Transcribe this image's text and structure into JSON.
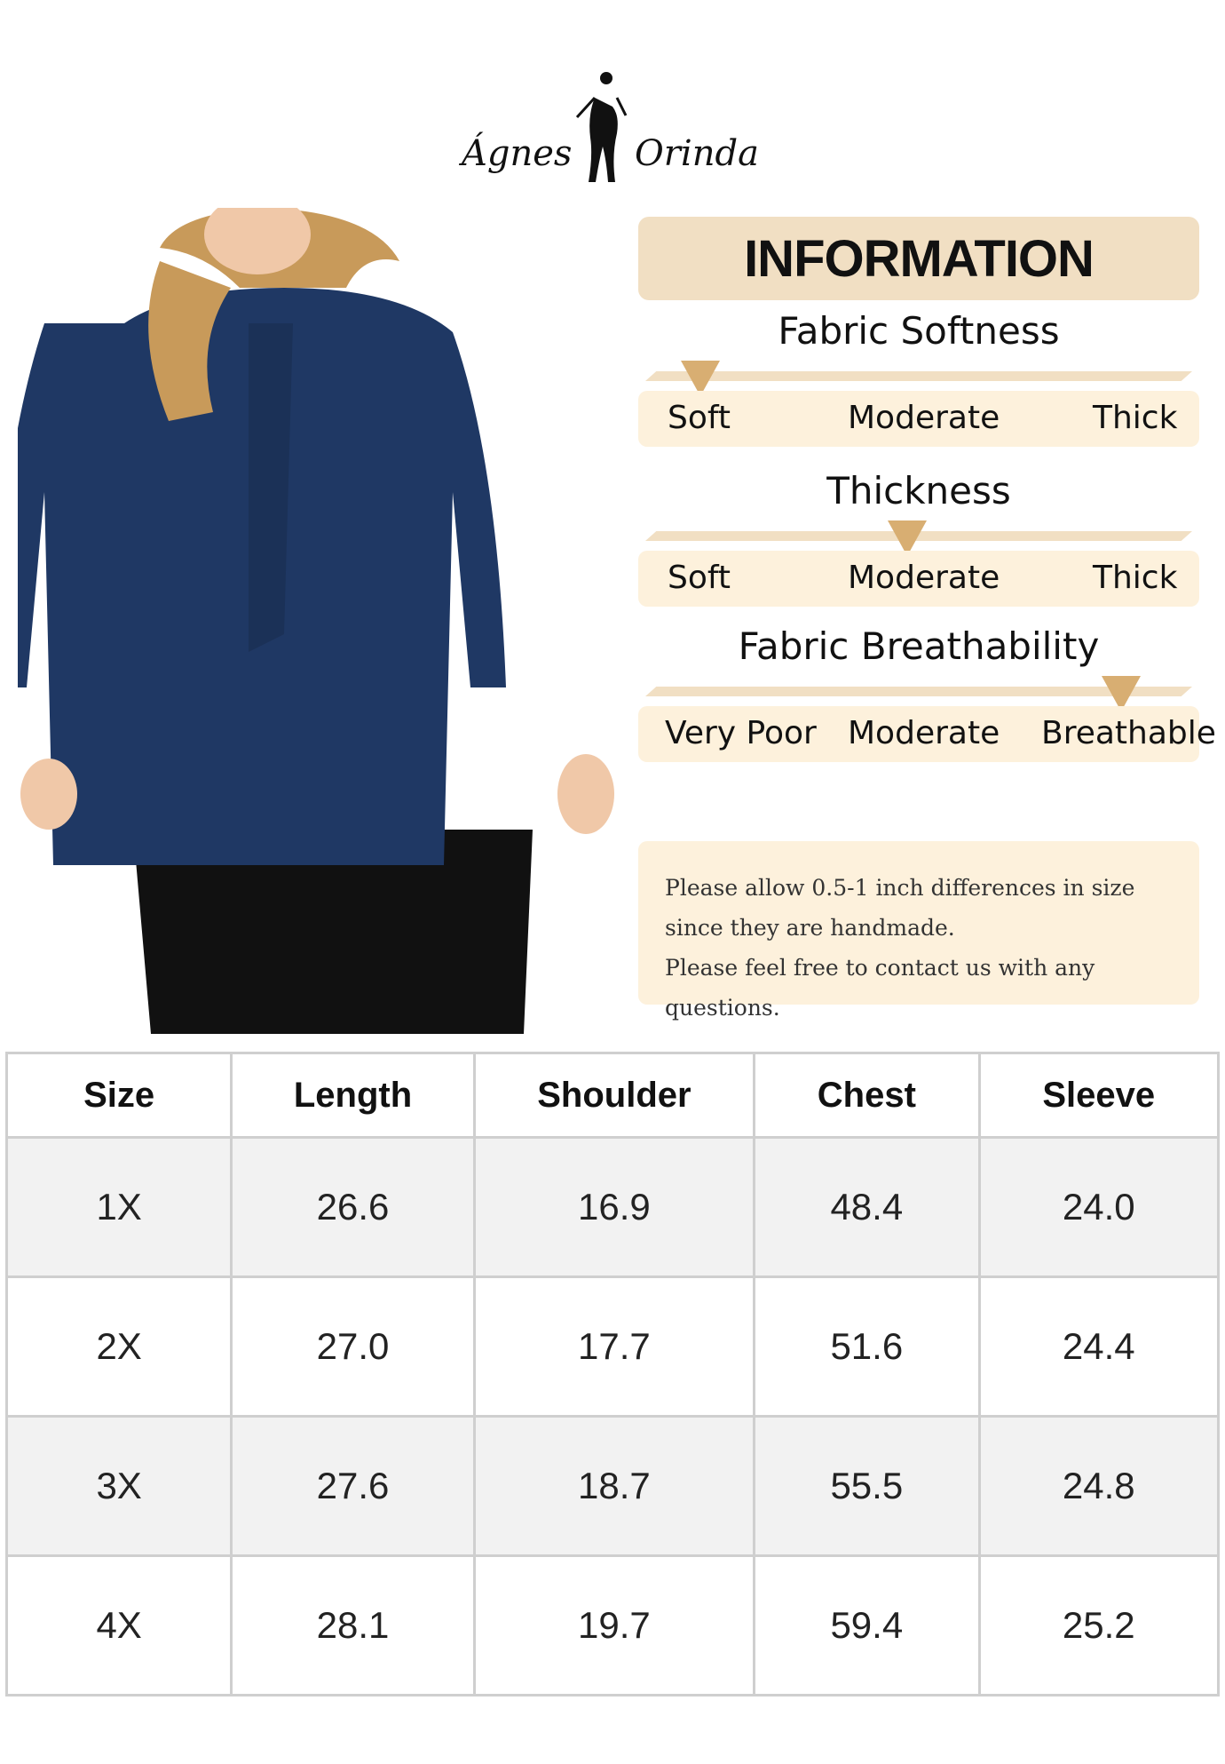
{
  "brand": {
    "name_left": "Ágnes",
    "name_right": "Orinda"
  },
  "info": {
    "heading": "INFORMATION",
    "ratings": [
      {
        "title": "Fabric Softness",
        "labels": [
          "Soft",
          "Moderate",
          "Thick"
        ],
        "level": 0.11
      },
      {
        "title": "Thickness",
        "labels": [
          "Soft",
          "Moderate",
          "Thick"
        ],
        "level": 0.48
      },
      {
        "title": "Fabric Breathability",
        "labels": [
          "Very Poor",
          "Moderate",
          "Breathable"
        ],
        "level": 0.86
      }
    ],
    "note": [
      "Please allow 0.5-1 inch differences in size",
      "since they are handmade.",
      "Please feel free to contact us with any questions."
    ]
  },
  "colors": {
    "accent": "#d8ae72",
    "band": "#f1dfc3",
    "panel": "#fdf1dc",
    "garment": "#1f3864"
  },
  "table": {
    "headers": [
      "Size",
      "Length",
      "Shoulder",
      "Chest",
      "Sleeve"
    ],
    "rows": [
      [
        "1X",
        "26.6",
        "16.9",
        "48.4",
        "24.0"
      ],
      [
        "2X",
        "27.0",
        "17.7",
        "51.6",
        "24.4"
      ],
      [
        "3X",
        "27.6",
        "18.7",
        "55.5",
        "24.8"
      ],
      [
        "4X",
        "28.1",
        "19.7",
        "59.4",
        "25.2"
      ]
    ]
  }
}
